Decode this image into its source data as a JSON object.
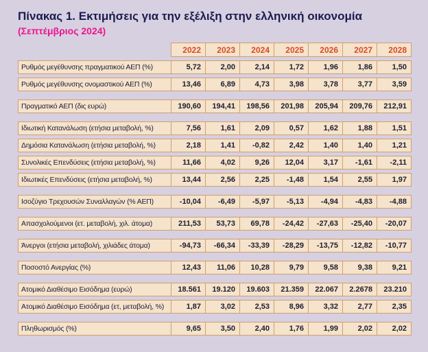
{
  "title": "Πίνακας 1. Εκτιμήσεις για την εξέλιξη στην ελληνική οικονομία",
  "subtitle": "(Σεπτέμβριος 2024)",
  "colors": {
    "page_bg": "#d7d0e1",
    "cell_bg": "#f5e3cb",
    "border": "#cf9f6d",
    "year_text": "#d94a2a",
    "title_text": "#1b1b4f",
    "subtitle_text": "#ec168c",
    "label_text": "#20203d",
    "value_text": "#1d1d30"
  },
  "chart_data": {
    "type": "table",
    "title": "Πίνακας 1. Εκτιμήσεις για την εξέλιξη στην ελληνική οικονομία (Σεπτέμβριος 2024)",
    "columns": [
      "2022",
      "2023",
      "2024",
      "2025",
      "2026",
      "2027",
      "2028"
    ],
    "rows": [
      {
        "label": "Ρυθμός μεγέθυνσης πραγματικού ΑΕΠ (%)",
        "values": [
          "5,72",
          "2,00",
          "2,14",
          "1,72",
          "1,96",
          "1,86",
          "1,50"
        ]
      },
      {
        "label": "Ρυθμός μεγέθυνσης ονομαστικού ΑΕΠ (%)",
        "values": [
          "13,46",
          "6,89",
          "4,73",
          "3,98",
          "3,78",
          "3,77",
          "3,59"
        ]
      },
      {
        "label": "Πραγματικό ΑΕΠ (δις ευρώ)",
        "values": [
          "190,60",
          "194,41",
          "198,56",
          "201,98",
          "205,94",
          "209,76",
          "212,91"
        ]
      },
      {
        "label": "Ιδιωτική Κατανάλωση (ετήσια μεταβολή, %)",
        "values": [
          "7,56",
          "1,61",
          "2,09",
          "0,57",
          "1,62",
          "1,88",
          "1,51"
        ]
      },
      {
        "label": "Δημόσια Κατανάλωση (ετήσια μεταβολή, %)",
        "values": [
          "2,18",
          "1,41",
          "-0,82",
          "2,42",
          "1,40",
          "1,40",
          "1,21"
        ]
      },
      {
        "label": "Συνολικές Επενδύσεις (ετήσια μεταβολή, %)",
        "values": [
          "11,66",
          "4,02",
          "9,26",
          "12,04",
          "3,17",
          "-1,61",
          "-2,11"
        ]
      },
      {
        "label": "Ιδιωτικές Επενδύσεις (ετήσια μεταβολή, %)",
        "values": [
          "13,44",
          "2,56",
          "2,25",
          "-1,48",
          "1,54",
          "2,55",
          "1,97"
        ]
      },
      {
        "label": "Ισοζύγιο Τρεχουσών Συναλλαγών (% ΑΕΠ)",
        "values": [
          "-10,04",
          "-6,49",
          "-5,97",
          "-5,13",
          "-4,94",
          "-4,83",
          "-4,88"
        ]
      },
      {
        "label": "Απασχολούμενοι (ετ. μεταβολή, χιλ. άτομα)",
        "values": [
          "211,53",
          "53,73",
          "69,78",
          "-24,42",
          "-27,63",
          "-25,40",
          "-20,07"
        ]
      },
      {
        "label": "Άνεργοι (ετήσια μεταβολή, χιλιάδες άτομα)",
        "values": [
          "-94,73",
          "-66,34",
          "-33,39",
          "-28,29",
          "-13,75",
          "-12,82",
          "-10,77"
        ]
      },
      {
        "label": "Ποσοστό Ανεργίας (%)",
        "values": [
          "12,43",
          "11,06",
          "10,28",
          "9,79",
          "9,58",
          "9,38",
          "9,21"
        ]
      },
      {
        "label": "Ατομικό Διαθέσιμο Εισόδημα (ευρώ)",
        "values": [
          "18.561",
          "19.120",
          "19.603",
          "21.359",
          "22.067",
          "2.2678",
          "23.210"
        ]
      },
      {
        "label": "Ατομικό Διαθέσιμο Εισόδημα (ετ, μεταβολή, %)",
        "values": [
          "1,87",
          "3,02",
          "2,53",
          "8,96",
          "3,32",
          "2,77",
          "2,35"
        ]
      },
      {
        "label": "Πληθωρισμός (%)",
        "values": [
          "9,65",
          "3,50",
          "2,40",
          "1,76",
          "1,99",
          "2,02",
          "2,02"
        ]
      }
    ]
  }
}
